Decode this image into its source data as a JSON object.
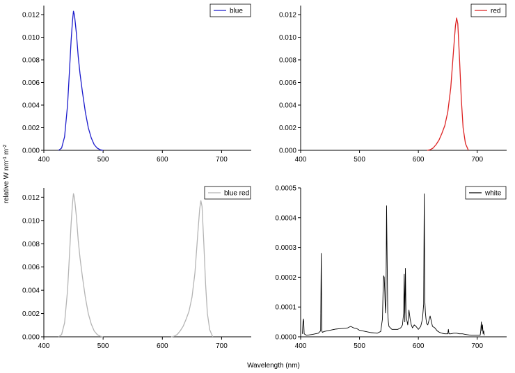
{
  "figure": {
    "xlabel": "Wavelength (nm)",
    "ylabel_main": "relative W nm",
    "ylabel_sup1": "-1",
    "ylabel_mid": " m",
    "ylabel_sup2": "-2"
  },
  "chart_data": [
    {
      "type": "line",
      "legend": "blue",
      "color": "#1a1acc",
      "xlim": [
        400,
        750
      ],
      "ylim": [
        0,
        0.0128
      ],
      "xticks": [
        "400",
        "500",
        "600",
        "700"
      ],
      "yticks": [
        "0.000",
        "0.002",
        "0.004",
        "0.006",
        "0.008",
        "0.010",
        "0.012"
      ],
      "series": [
        {
          "x": [
            425,
            430,
            435,
            440,
            443,
            446,
            448,
            449,
            450,
            451,
            452,
            453,
            455,
            458,
            461,
            465,
            470,
            475,
            480,
            485,
            490,
            495,
            500
          ],
          "y": [
            0,
            0.0002,
            0.0012,
            0.004,
            0.0068,
            0.0097,
            0.0112,
            0.0118,
            0.0123,
            0.0121,
            0.0118,
            0.0113,
            0.0103,
            0.0083,
            0.0068,
            0.0052,
            0.0034,
            0.002,
            0.0011,
            0.0005,
            0.0002,
            5e-05,
            0
          ]
        }
      ]
    },
    {
      "type": "line",
      "legend": "red",
      "color": "#dd2222",
      "xlim": [
        400,
        750
      ],
      "ylim": [
        0,
        0.0128
      ],
      "xticks": [
        "400",
        "500",
        "600",
        "700"
      ],
      "yticks": [
        "0.000",
        "0.002",
        "0.004",
        "0.006",
        "0.008",
        "0.010",
        "0.012"
      ],
      "series": [
        {
          "x": [
            615,
            620,
            625,
            630,
            635,
            640,
            645,
            650,
            655,
            660,
            663,
            665,
            667,
            670,
            673,
            676,
            680,
            685
          ],
          "y": [
            0,
            5e-05,
            0.0002,
            0.0005,
            0.0009,
            0.0015,
            0.0022,
            0.0034,
            0.0055,
            0.009,
            0.011,
            0.0117,
            0.0112,
            0.008,
            0.0045,
            0.002,
            0.0006,
            0
          ]
        }
      ]
    },
    {
      "type": "line",
      "legend": "blue red",
      "color": "#b4b4b4",
      "xlim": [
        400,
        750
      ],
      "ylim": [
        0,
        0.0128
      ],
      "xticks": [
        "400",
        "500",
        "600",
        "700"
      ],
      "yticks": [
        "0.000",
        "0.002",
        "0.004",
        "0.006",
        "0.008",
        "0.010",
        "0.012"
      ],
      "series": [
        {
          "x": [
            425,
            430,
            435,
            440,
            443,
            446,
            448,
            449,
            450,
            451,
            452,
            453,
            455,
            458,
            461,
            465,
            470,
            475,
            480,
            485,
            490,
            495,
            500
          ],
          "y": [
            0,
            0.0002,
            0.0012,
            0.004,
            0.0068,
            0.0097,
            0.0112,
            0.0118,
            0.0123,
            0.0121,
            0.0118,
            0.0113,
            0.0103,
            0.0083,
            0.0068,
            0.0052,
            0.0034,
            0.002,
            0.0011,
            0.0005,
            0.0002,
            5e-05,
            0
          ]
        },
        {
          "x": [
            615,
            620,
            625,
            630,
            635,
            640,
            645,
            650,
            655,
            660,
            663,
            665,
            667,
            670,
            673,
            676,
            680,
            685
          ],
          "y": [
            0,
            5e-05,
            0.0002,
            0.0005,
            0.0009,
            0.0015,
            0.0022,
            0.0034,
            0.0055,
            0.009,
            0.011,
            0.0117,
            0.0112,
            0.008,
            0.0045,
            0.002,
            0.0006,
            0
          ]
        }
      ]
    },
    {
      "type": "line",
      "legend": "white",
      "color": "#000000",
      "xlim": [
        400,
        750
      ],
      "ylim": [
        0,
        0.0005
      ],
      "xticks": [
        "400",
        "500",
        "600",
        "700"
      ],
      "yticks": [
        "0.0000",
        "0.0001",
        "0.0002",
        "0.0003",
        "0.0004",
        "0.0005"
      ],
      "series": [
        {
          "x": [
            403,
            404,
            405,
            406,
            410,
            420,
            430,
            434,
            435,
            436,
            437,
            440,
            450,
            460,
            470,
            480,
            485,
            490,
            495,
            500,
            510,
            520,
            530,
            536,
            539,
            540,
            541,
            542,
            543,
            544,
            545,
            546,
            547,
            548,
            549,
            550,
            555,
            560,
            565,
            570,
            573,
            575,
            576,
            577,
            578,
            579,
            580,
            582,
            584,
            586,
            588,
            590,
            593,
            596,
            600,
            604,
            607,
            609,
            610,
            611,
            612,
            613,
            614,
            616,
            620,
            624,
            628,
            632,
            636,
            640,
            645,
            650,
            651,
            652,
            655,
            660,
            665,
            670,
            675,
            680,
            690,
            700,
            705,
            706,
            707,
            708,
            709,
            710,
            711,
            712
          ],
          "y": [
            1e-05,
            5e-05,
            6e-05,
            1e-05,
            5e-06,
            8e-06,
            1.2e-05,
            2e-05,
            0.00028,
            2e-05,
            1.5e-05,
            1.8e-05,
            2.2e-05,
            2.6e-05,
            2.8e-05,
            3e-05,
            3.5e-05,
            3e-05,
            2.8e-05,
            2.2e-05,
            1.8e-05,
            1.4e-05,
            1.2e-05,
            1.8e-05,
            6e-05,
            0.00015,
            0.000205,
            0.0002,
            0.00015,
            8e-05,
            0.00012,
            0.00044,
            0.00025,
            8e-05,
            5e-05,
            3.5e-05,
            2.5e-05,
            2.5e-05,
            2.5e-05,
            3e-05,
            4e-05,
            8e-05,
            0.00021,
            5e-05,
            0.00023,
            8e-05,
            6e-05,
            4e-05,
            9e-05,
            6e-05,
            4e-05,
            3e-05,
            4e-05,
            3.5e-05,
            2.5e-05,
            3.5e-05,
            6e-05,
            0.00011,
            0.00048,
            0.00012,
            8e-05,
            6e-05,
            4.5e-05,
            4e-05,
            7e-05,
            3.5e-05,
            3e-05,
            2e-05,
            1.5e-05,
            1.2e-05,
            1e-05,
            1e-05,
            2.5e-05,
            1e-05,
            1e-05,
            1.2e-05,
            1.2e-05,
            1e-05,
            1e-05,
            8e-06,
            5e-06,
            5e-06,
            5e-06,
            2e-05,
            5e-05,
            2e-05,
            4e-05,
            1e-05,
            2e-05,
            5e-06
          ]
        }
      ]
    }
  ]
}
